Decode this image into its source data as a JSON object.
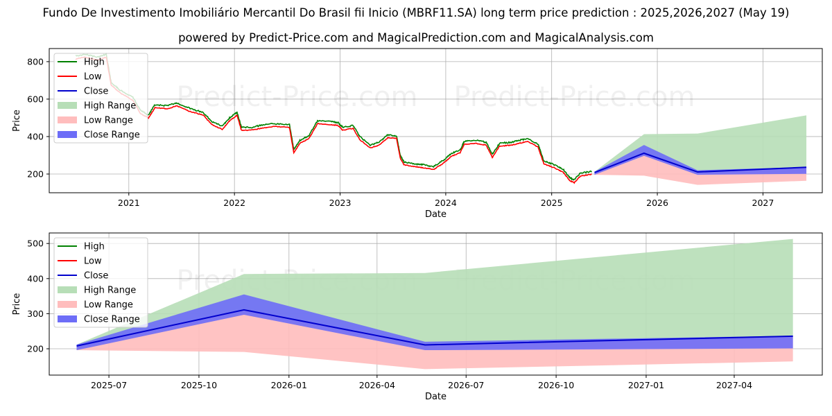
{
  "page": {
    "title": "Fundo De Investimento Imobiliário Mercantil Do Brasil fii Inicio (MBRF11.SA) long term price prediction : 2025,2026,2027 (May 19)",
    "subtitle": "powered by Predict-Price.com and MagicalPrediction.com and MagicalAnalysis.com",
    "watermark": "Predict-Price.com"
  },
  "colors": {
    "high": "#008000",
    "low": "#ff0000",
    "close": "#0000cd",
    "high_range": "#b7deb7",
    "low_range": "#ffbdbd",
    "close_range": "#6d6df7"
  },
  "chart_data": [
    {
      "type": "line",
      "xlabel": "Date",
      "ylabel": "Price",
      "x_ticks": [
        "2021",
        "2022",
        "2023",
        "2024",
        "2025",
        "2026",
        "2027"
      ],
      "y_ticks": [
        200,
        400,
        600,
        800
      ],
      "xlim": [
        "2020-04-01",
        "2027-07-25"
      ],
      "ylim": [
        100,
        870
      ],
      "grid": true,
      "legend_position": "top-left",
      "legend": [
        "High",
        "Low",
        "Close",
        "High Range",
        "Low Range",
        "Close Range"
      ],
      "history": [
        [
          "2020-07-01",
          820
        ],
        [
          "2020-08-01",
          830
        ],
        [
          "2020-09-15",
          815
        ],
        [
          "2020-10-15",
          830
        ],
        [
          "2020-11-01",
          680
        ],
        [
          "2020-12-01",
          640
        ],
        [
          "2021-01-15",
          600
        ],
        [
          "2021-02-10",
          530
        ],
        [
          "2021-03-10",
          505
        ],
        [
          "2021-04-01",
          560
        ],
        [
          "2021-05-15",
          555
        ],
        [
          "2021-06-15",
          570
        ],
        [
          "2021-08-01",
          540
        ],
        [
          "2021-09-15",
          520
        ],
        [
          "2021-10-15",
          470
        ],
        [
          "2021-11-20",
          445
        ],
        [
          "2021-12-15",
          490
        ],
        [
          "2022-01-10",
          520
        ],
        [
          "2022-01-25",
          440
        ],
        [
          "2022-03-01",
          440
        ],
        [
          "2022-04-01",
          450
        ],
        [
          "2022-05-15",
          460
        ],
        [
          "2022-07-10",
          455
        ],
        [
          "2022-07-25",
          320
        ],
        [
          "2022-08-15",
          370
        ],
        [
          "2022-09-15",
          395
        ],
        [
          "2022-10-15",
          475
        ],
        [
          "2022-12-01",
          470
        ],
        [
          "2022-12-25",
          465
        ],
        [
          "2023-01-10",
          440
        ],
        [
          "2023-02-15",
          450
        ],
        [
          "2023-03-10",
          390
        ],
        [
          "2023-04-15",
          345
        ],
        [
          "2023-05-15",
          360
        ],
        [
          "2023-06-15",
          400
        ],
        [
          "2023-07-15",
          395
        ],
        [
          "2023-07-28",
          290
        ],
        [
          "2023-08-10",
          255
        ],
        [
          "2023-09-15",
          245
        ],
        [
          "2023-10-15",
          240
        ],
        [
          "2023-11-20",
          230
        ],
        [
          "2023-12-25",
          265
        ],
        [
          "2024-01-20",
          300
        ],
        [
          "2024-02-20",
          320
        ],
        [
          "2024-03-05",
          365
        ],
        [
          "2024-04-15",
          370
        ],
        [
          "2024-05-20",
          360
        ],
        [
          "2024-06-10",
          295
        ],
        [
          "2024-07-05",
          355
        ],
        [
          "2024-08-15",
          360
        ],
        [
          "2024-09-10",
          370
        ],
        [
          "2024-10-10",
          380
        ],
        [
          "2024-11-15",
          350
        ],
        [
          "2024-12-05",
          260
        ],
        [
          "2025-01-10",
          240
        ],
        [
          "2025-02-10",
          215
        ],
        [
          "2025-03-05",
          170
        ],
        [
          "2025-03-20",
          160
        ],
        [
          "2025-04-10",
          195
        ],
        [
          "2025-05-19",
          205
        ]
      ],
      "forecast": {
        "dates": [
          "2025-05-29",
          "2025-11-16",
          "2026-05-20",
          "2027-05-31"
        ],
        "close": [
          208,
          311,
          211,
          236
        ],
        "close_range_high": [
          212,
          355,
          220,
          237
        ],
        "close_range_low": [
          196,
          297,
          196,
          201
        ],
        "high_range_high": [
          212,
          413,
          416,
          513
        ],
        "low_range_low": [
          196,
          191,
          142,
          164
        ]
      }
    },
    {
      "type": "line",
      "xlabel": "Date",
      "ylabel": "Price",
      "x_ticks": [
        "2025-07",
        "2025-10",
        "2026-01",
        "2026-04",
        "2026-07",
        "2026-10",
        "2027-01",
        "2027-04"
      ],
      "y_ticks": [
        200,
        300,
        400,
        500
      ],
      "xlim": [
        "2025-05-01",
        "2027-06-30"
      ],
      "ylim": [
        125,
        530
      ],
      "grid": true,
      "legend_position": "top-left",
      "legend": [
        "High",
        "Low",
        "Close",
        "High Range",
        "Low Range",
        "Close Range"
      ]
    }
  ]
}
